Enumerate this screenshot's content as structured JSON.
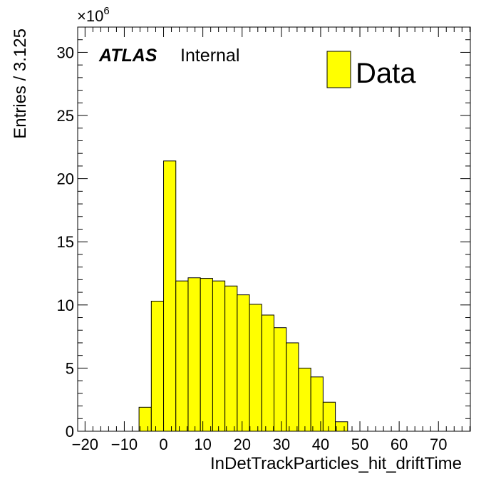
{
  "chart_data": {
    "type": "bar",
    "histogram": true,
    "xlabel": "InDetTrackParticles_hit_driftTime",
    "ylabel": "Entries / 3.125",
    "y_multiplier": "×10",
    "y_multiplier_exponent": "6",
    "xlim": [
      -21.875,
      78.125
    ],
    "ylim": [
      0,
      32
    ],
    "x_ticks": [
      -20,
      -10,
      0,
      10,
      20,
      30,
      40,
      50,
      60,
      70
    ],
    "x_tick_labels": [
      "−20",
      "−10",
      "0",
      "10",
      "20",
      "30",
      "40",
      "50",
      "60",
      "70"
    ],
    "y_ticks": [
      0,
      5,
      10,
      15,
      20,
      25,
      30
    ],
    "y_tick_labels": [
      "0",
      "5",
      "10",
      "15",
      "20",
      "25",
      "30"
    ],
    "bin_width": 3.125,
    "bin_edges_start": -6.25,
    "series": [
      {
        "name": "Data",
        "color": "#ffff00",
        "bin_low_edges": [
          -6.25,
          -3.125,
          0,
          3.125,
          6.25,
          9.375,
          12.5,
          15.625,
          18.75,
          21.875,
          25,
          28.125,
          31.25,
          34.375,
          37.5,
          40.625,
          43.75
        ],
        "values": [
          1.9,
          10.3,
          21.4,
          11.9,
          12.15,
          12.1,
          11.9,
          11.5,
          10.8,
          10.05,
          9.2,
          8.2,
          7.0,
          5.0,
          4.3,
          2.3,
          0.75
        ]
      }
    ],
    "legend": {
      "position": "top-right",
      "entries": [
        "Data"
      ]
    },
    "label": {
      "experiment": "ATLAS",
      "status": "Internal"
    },
    "grid": false
  }
}
